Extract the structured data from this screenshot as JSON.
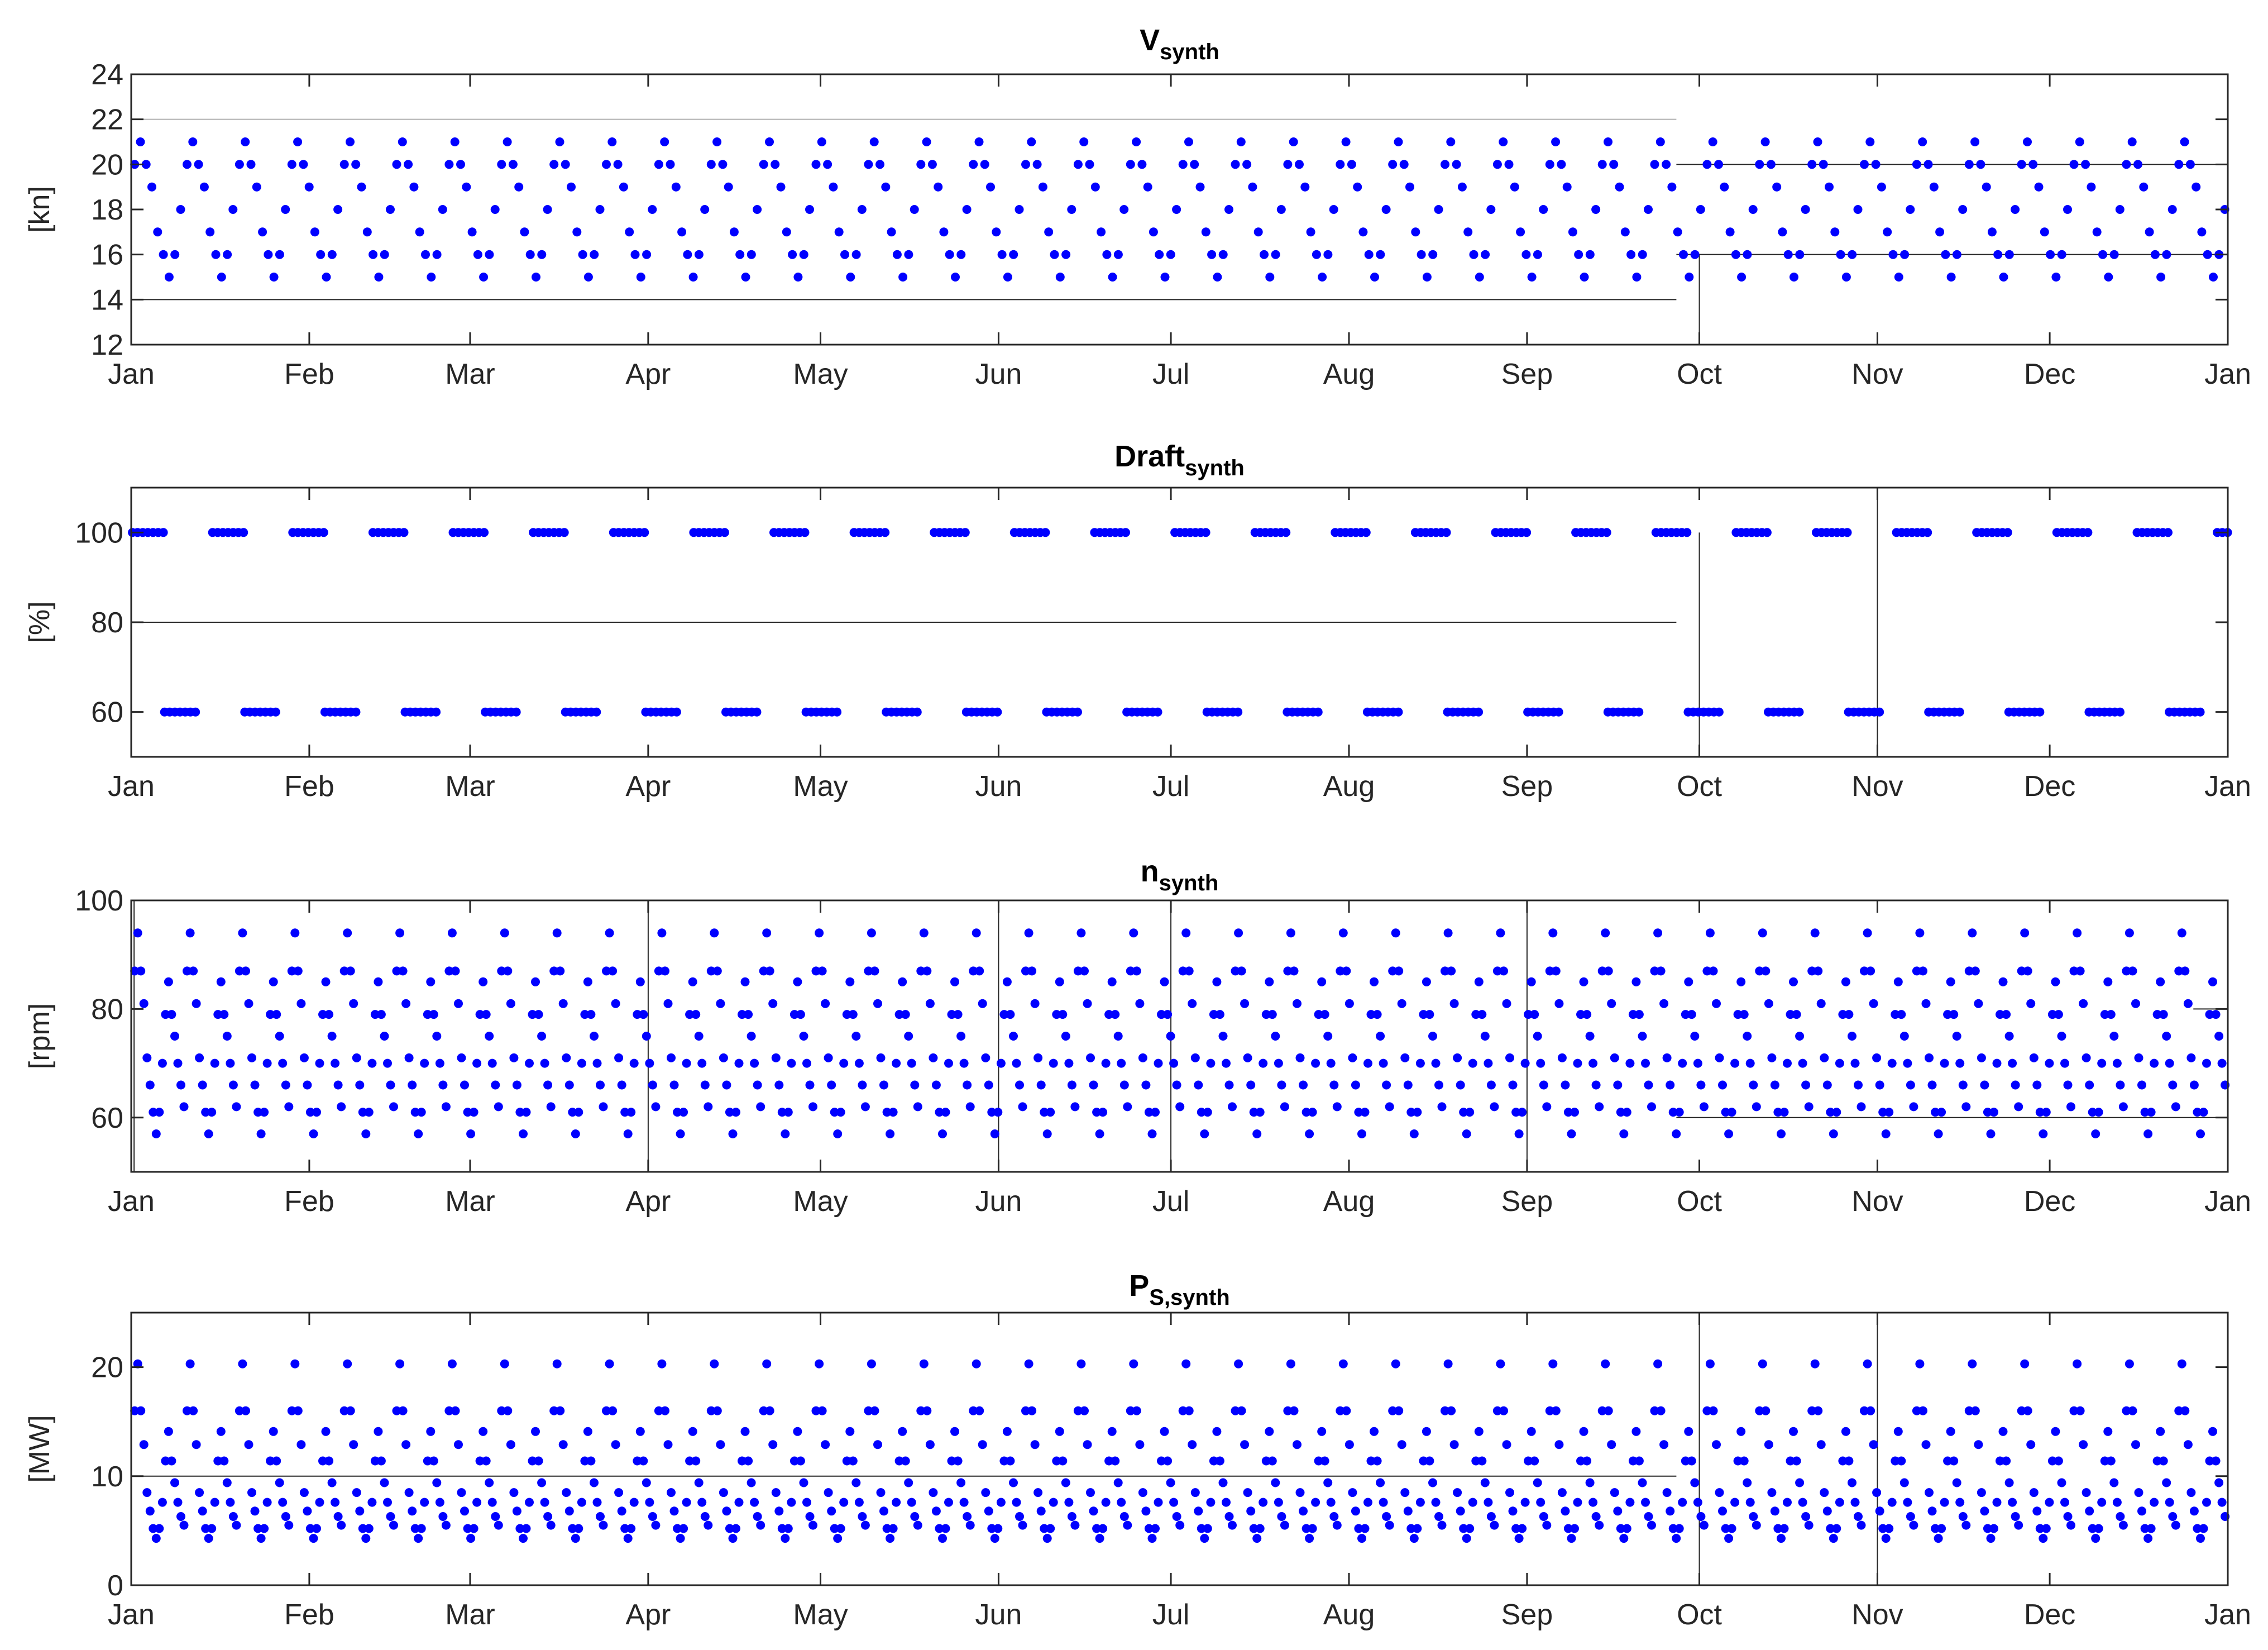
{
  "figure": {
    "month_ticks": [
      "Jan",
      "Feb",
      "Mar",
      "Apr",
      "May",
      "Jun",
      "Jul",
      "Aug",
      "Sep",
      "Oct",
      "Nov",
      "Dec",
      "Jan"
    ]
  },
  "chart_data": [
    {
      "type": "scatter",
      "title": "V",
      "title_subscript": "synth",
      "ylabel": "[kn]",
      "ylim": [
        12,
        24
      ],
      "yticks": [
        12,
        14,
        16,
        18,
        20,
        22,
        24
      ],
      "x_unit": "day of year",
      "xlim": [
        0,
        365
      ],
      "marker_color": "#0000ff",
      "pattern": {
        "period_days": 9.125,
        "start": 0.6,
        "spacing": 1.0,
        "values": [
          20,
          21,
          20,
          19,
          17,
          16,
          15,
          16,
          18
        ]
      },
      "reference_lines": [
        {
          "y": 14,
          "x": [
            0,
            269
          ],
          "color": "#262626"
        },
        {
          "y": 22,
          "x": [
            0,
            269
          ],
          "color": "#b0b0b0"
        },
        {
          "y": 16,
          "x": [
            269,
            365
          ],
          "color": "#262626"
        },
        {
          "y": 20,
          "x": [
            269,
            365
          ],
          "color": "#262626"
        },
        {
          "x": 273,
          "y": [
            12,
            16
          ],
          "color": "#262626"
        }
      ]
    },
    {
      "type": "scatter",
      "title": "Draft",
      "title_subscript": "synth",
      "ylabel": "[%]",
      "ylim": [
        50,
        110
      ],
      "yticks": [
        60,
        80,
        100
      ],
      "x_unit": "day of year",
      "xlim": [
        0,
        365
      ],
      "marker_color": "#0000ff",
      "pattern": {
        "period_days": 13.96,
        "levels": [
          100,
          60
        ],
        "segment_days": 7,
        "step": 0.9,
        "start_100": 0.2,
        "start_60": 5.8
      },
      "reference_lines": [
        {
          "y": 80,
          "x": [
            0,
            269
          ],
          "color": "#262626"
        },
        {
          "x": 273,
          "y": [
            50,
            100
          ],
          "color": "#262626"
        },
        {
          "x": 304,
          "y": [
            50,
            110
          ],
          "color": "#262626"
        }
      ]
    },
    {
      "type": "scatter",
      "title": "n",
      "title_subscript": "synth",
      "ylabel": "[rpm]",
      "ylim": [
        50,
        100
      ],
      "yticks": [
        60,
        80,
        100
      ],
      "x_unit": "day of year",
      "xlim": [
        0,
        365
      ],
      "marker_color": "#0000ff",
      "pattern": {
        "period_days": 9.125,
        "start": 0.6,
        "spacing": 1.0,
        "values": [
          87,
          94,
          87,
          81,
          71,
          66,
          61,
          57,
          61,
          70,
          79,
          85,
          79,
          75,
          70,
          66,
          62
        ]
      },
      "reference_lines": [
        {
          "x": 0.5,
          "y": [
            50,
            100
          ],
          "color": "#262626"
        },
        {
          "x": 90,
          "y": [
            50,
            100
          ],
          "color": "#262626"
        },
        {
          "x": 151,
          "y": [
            50,
            100
          ],
          "color": "#262626"
        },
        {
          "x": 181,
          "y": [
            50,
            100
          ],
          "color": "#262626"
        },
        {
          "x": 243,
          "y": [
            50,
            100
          ],
          "color": "#262626"
        },
        {
          "y": 60,
          "x": [
            269,
            365
          ],
          "color": "#262626"
        },
        {
          "y": 80,
          "x": [
            359,
            365
          ],
          "color": "#262626"
        }
      ]
    },
    {
      "type": "scatter",
      "title": "P",
      "title_subscript": "S,synth",
      "ylabel": "[MW]",
      "ylim": [
        0,
        25
      ],
      "yticks": [
        0,
        10,
        20
      ],
      "x_unit": "day of year",
      "xlim": [
        0,
        365
      ],
      "marker_color": "#0000ff",
      "pattern": {
        "period_days": 9.125,
        "start": 0.6,
        "spacing": 1.0,
        "values": [
          16,
          20.3,
          16,
          12.9,
          8.5,
          6.8,
          5.2,
          4.3,
          5.2,
          7.6,
          11.4,
          14.1,
          11.4,
          9.4,
          7.6,
          6.3,
          5.5
        ]
      },
      "reference_lines": [
        {
          "y": 10,
          "x": [
            0,
            269
          ],
          "color": "#262626"
        },
        {
          "x": 273,
          "y": [
            0,
            25
          ],
          "color": "#262626"
        },
        {
          "x": 304,
          "y": [
            0,
            25
          ],
          "color": "#262626"
        }
      ]
    }
  ]
}
